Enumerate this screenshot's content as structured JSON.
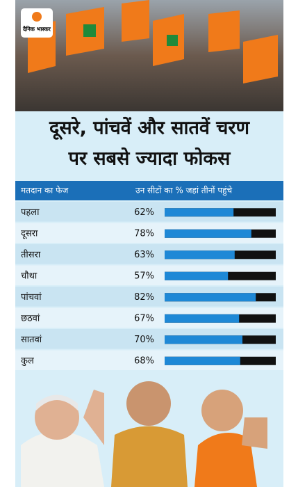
{
  "brand": "दैनिक भास्कर",
  "chart_data": {
    "type": "bar",
    "title_lines": [
      "दूसरे, पांचवें और सातवें चरण",
      "पर सबसे ज्यादा फोकस"
    ],
    "header": [
      "मतदान का फेज",
      "उन सीटों का % जहां तीनों पहुंचे"
    ],
    "categories": [
      "पहला",
      "दूसरा",
      "तीसरा",
      "चौथा",
      "पांचवां",
      "छठवां",
      "सातवां",
      "कुल"
    ],
    "values": [
      62,
      78,
      63,
      57,
      82,
      67,
      70,
      68
    ],
    "value_labels": [
      "62%",
      "78%",
      "63%",
      "57%",
      "82%",
      "67%",
      "70%",
      "68%"
    ],
    "xlim": [
      0,
      100
    ],
    "color": "#1e88d6",
    "rest_color": "#111111"
  }
}
